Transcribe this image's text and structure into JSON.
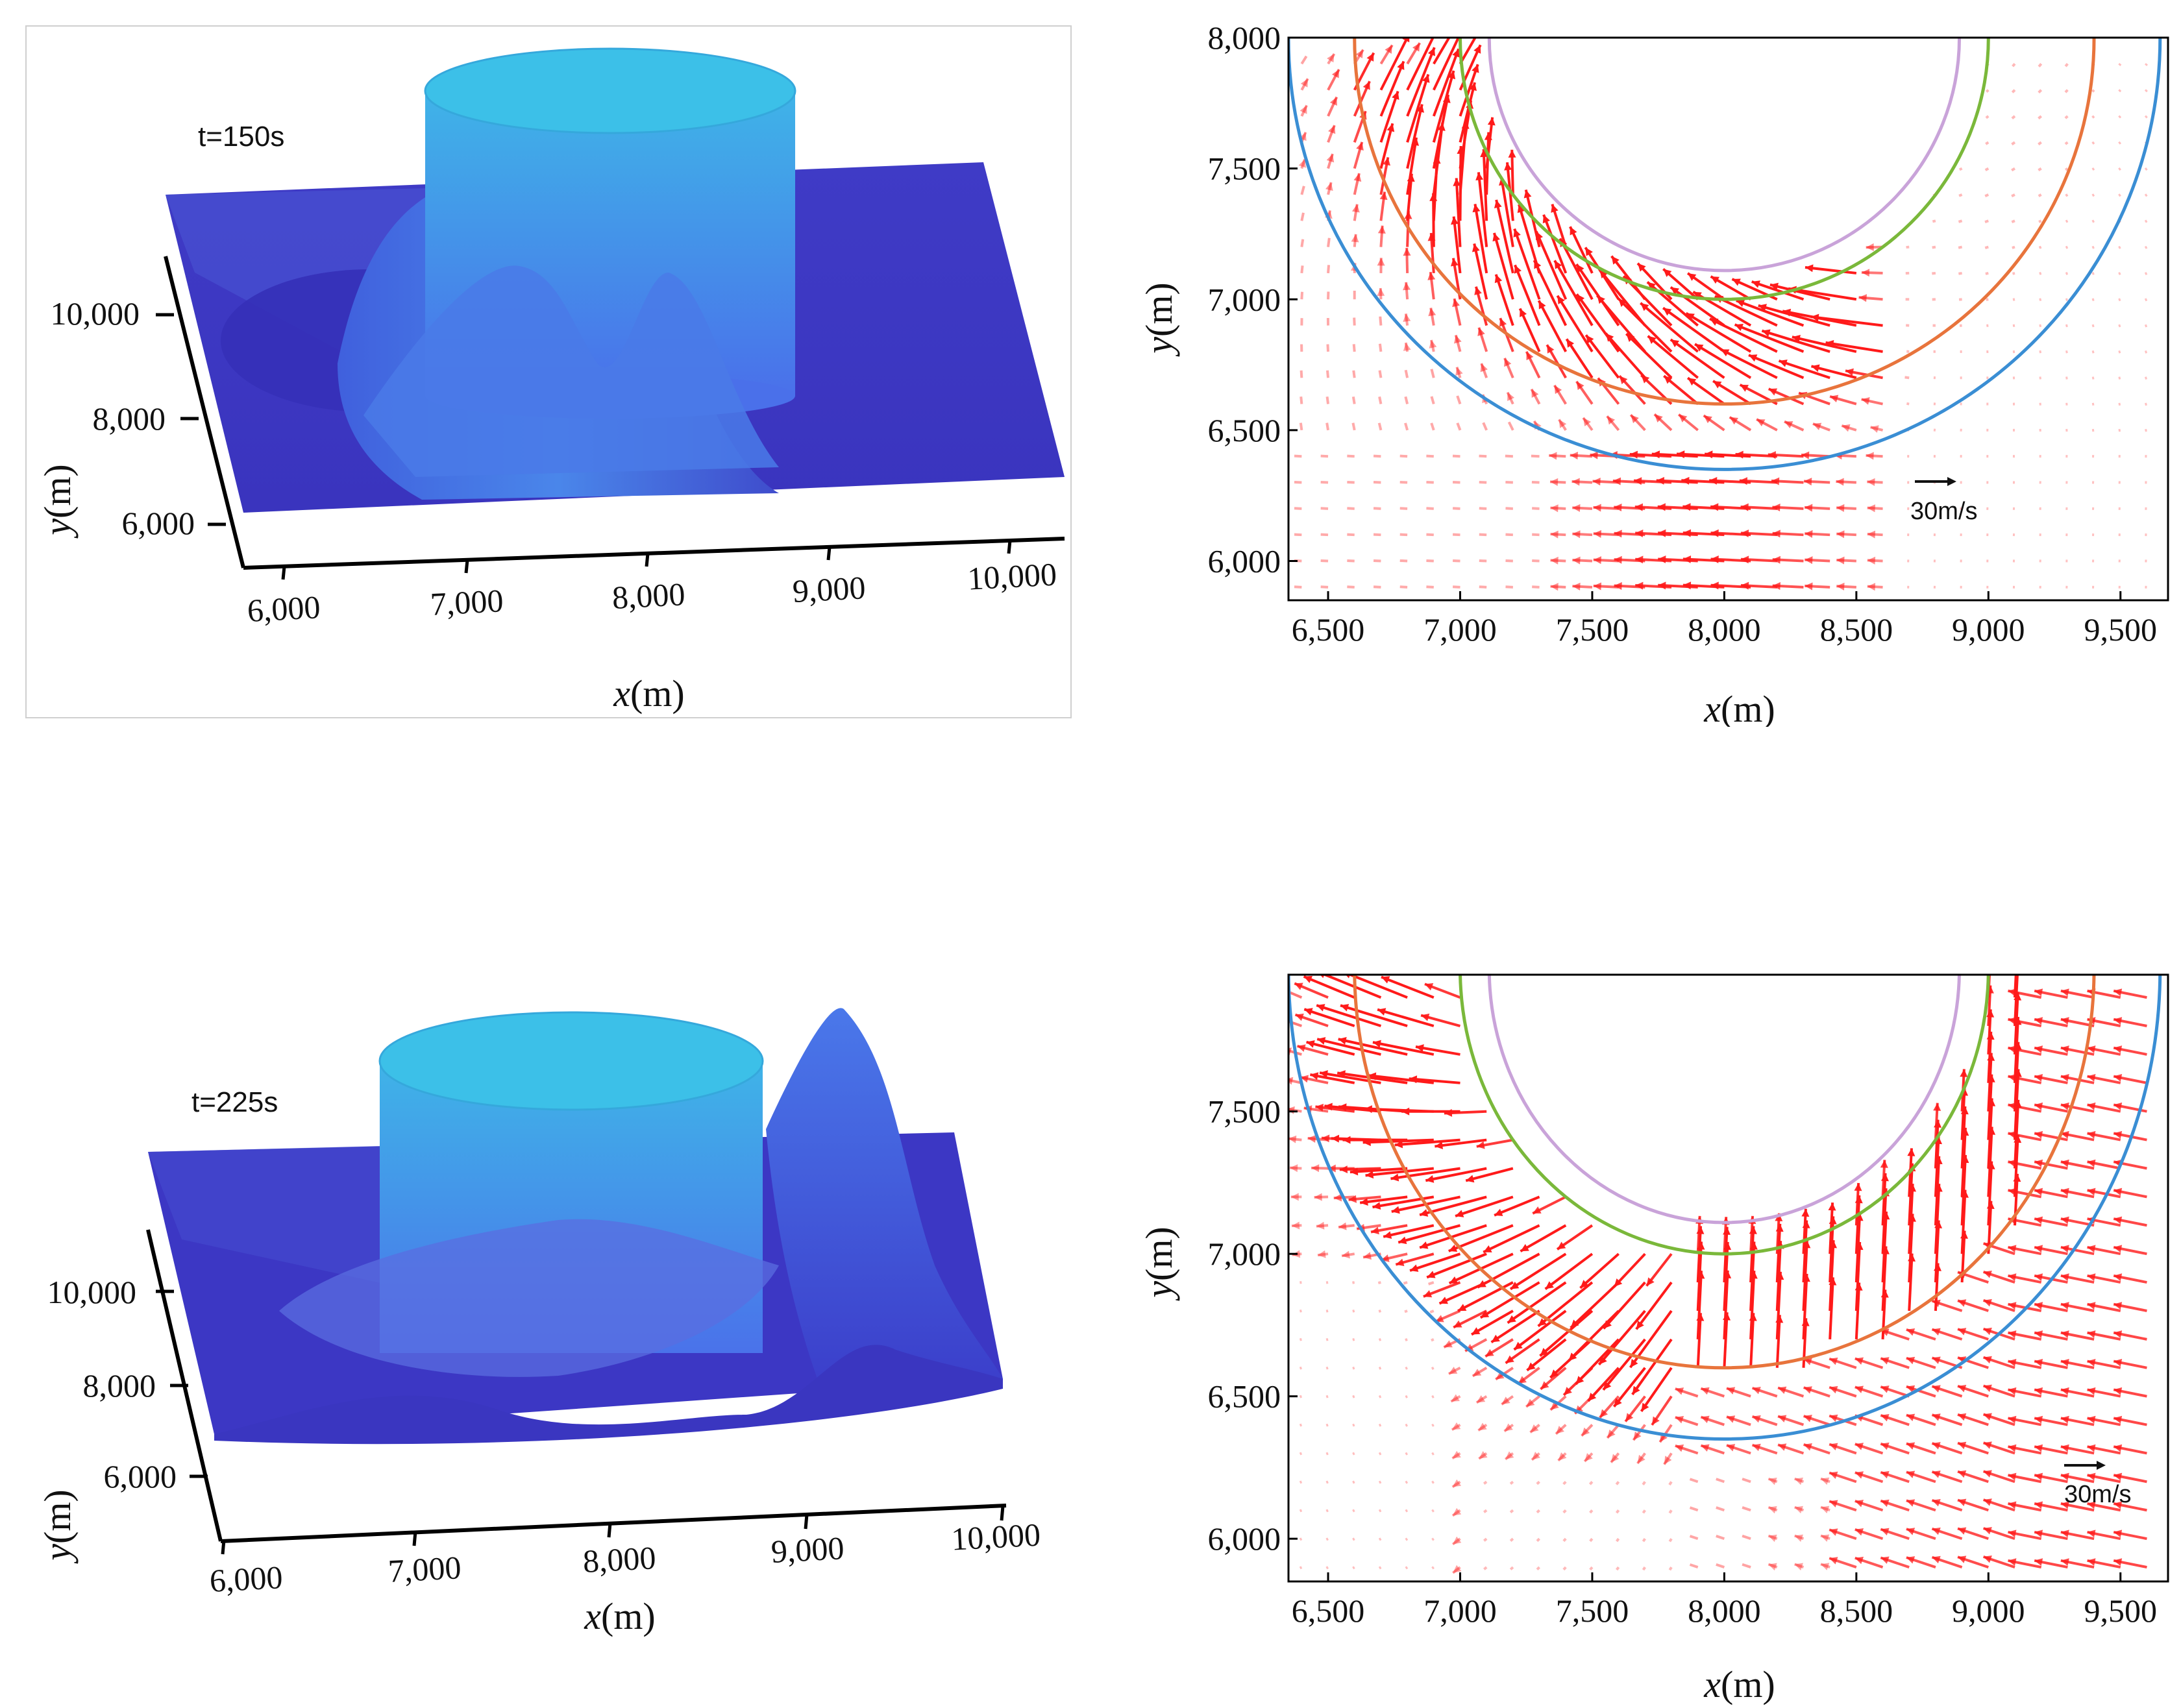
{
  "colors": {
    "surface_dark": "#3b35c4",
    "surface_light": "#3f8ee6",
    "cylinder_top": "#3fb0e6",
    "arrow": "#ff1a1a",
    "ring_blue": "#3a8ed4",
    "ring_orange": "#e8743c",
    "ring_green": "#7ab83a",
    "ring_purple": "#c9a3d9"
  },
  "chart_data": [
    {
      "id": "surface-t150",
      "type": "surface",
      "title": "t=150s",
      "xlabel_var": "x",
      "xlabel_unit": "(m)",
      "ylabel_var": "y",
      "ylabel_unit": "(m)",
      "x_ticks": [
        "6,000",
        "7,000",
        "8,000",
        "9,000",
        "10,000"
      ],
      "y_ticks": [
        "6,000",
        "8,000",
        "10,000"
      ],
      "xlim": [
        6000,
        10000
      ],
      "ylim": [
        6000,
        10000
      ]
    },
    {
      "id": "quiver-t150",
      "type": "quiver",
      "xlabel_var": "x",
      "xlabel_unit": "(m)",
      "ylabel_var": "y",
      "ylabel_unit": "(m)",
      "x_ticks": [
        "6,500",
        "7,000",
        "7,500",
        "8,000",
        "8,500",
        "9,000",
        "9,500"
      ],
      "y_ticks": [
        "6,000",
        "6,500",
        "7,000",
        "7,500",
        "8,000"
      ],
      "x_tick_values": [
        6500,
        7000,
        7500,
        8000,
        8500,
        9000,
        9500
      ],
      "y_tick_values": [
        6000,
        6500,
        7000,
        7500,
        8000
      ],
      "xlim": [
        6350,
        9680
      ],
      "ylim": [
        5850,
        8000
      ],
      "scale_label": "30m/s",
      "center": [
        8000,
        8000
      ],
      "rings": [
        {
          "name": "blue",
          "radius": 1650
        },
        {
          "name": "orange",
          "radius": 1400
        },
        {
          "name": "green",
          "radius": 1000
        },
        {
          "name": "purple",
          "radius": 890
        }
      ]
    },
    {
      "id": "surface-t225",
      "type": "surface",
      "title": "t=225s",
      "xlabel_var": "x",
      "xlabel_unit": "(m)",
      "ylabel_var": "y",
      "ylabel_unit": "(m)",
      "x_ticks": [
        "6,000",
        "7,000",
        "8,000",
        "9,000",
        "10,000"
      ],
      "y_ticks": [
        "6,000",
        "8,000",
        "10,000"
      ],
      "xlim": [
        6000,
        10000
      ],
      "ylim": [
        6000,
        10000
      ]
    },
    {
      "id": "quiver-t225",
      "type": "quiver",
      "xlabel_var": "x",
      "xlabel_unit": "(m)",
      "ylabel_var": "y",
      "ylabel_unit": "(m)",
      "x_ticks": [
        "6,500",
        "7,000",
        "7,500",
        "8,000",
        "8,500",
        "9,000",
        "9,500"
      ],
      "y_ticks": [
        "6,000",
        "6,500",
        "7,000",
        "7,500"
      ],
      "x_tick_values": [
        6500,
        7000,
        7500,
        8000,
        8500,
        9000,
        9500
      ],
      "y_tick_values": [
        6000,
        6500,
        7000,
        7500
      ],
      "xlim": [
        6350,
        9680
      ],
      "ylim": [
        5850,
        7980
      ],
      "scale_label": "30m/s",
      "center": [
        8000,
        8000
      ],
      "rings": [
        {
          "name": "blue",
          "radius": 1650
        },
        {
          "name": "orange",
          "radius": 1400
        },
        {
          "name": "green",
          "radius": 1000
        },
        {
          "name": "purple",
          "radius": 890
        }
      ]
    }
  ]
}
